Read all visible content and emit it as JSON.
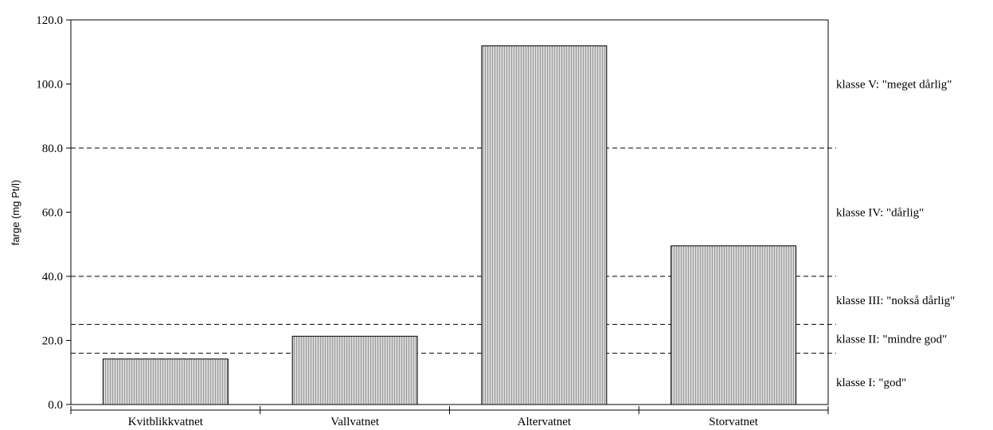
{
  "chart_data": {
    "type": "bar",
    "title": "",
    "xlabel": "",
    "ylabel": "farge (mg Pt/l)",
    "ylim": [
      0,
      120
    ],
    "yticks": [
      "0.0",
      "20.0",
      "40.0",
      "60.0",
      "80.0",
      "100.0",
      "120.0"
    ],
    "categories": [
      "Kvitblikkvatnet",
      "Vallvatnet",
      "Altervatnet",
      "Storvatnet"
    ],
    "values": [
      14.2,
      21.3,
      111.9,
      49.5
    ],
    "bar_color": "#c0c0c0",
    "grid": false,
    "class_thresholds": [
      16,
      25,
      40,
      80
    ],
    "class_labels": [
      "klasse I: \"god\"",
      "klasse II: \"mindre god\"",
      "klasse III: \"nokså dårlig\"",
      "klasse IV: \"dårlig\"",
      "klasse V: \"meget dårlig\""
    ],
    "class_label_positions": [
      7,
      20.5,
      32.5,
      60,
      100
    ]
  }
}
